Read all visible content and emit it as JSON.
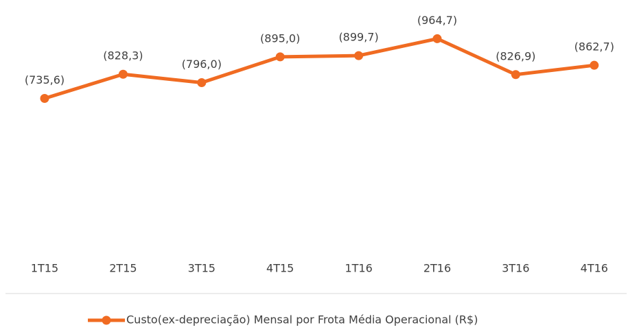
{
  "chart_data": {
    "type": "line",
    "categories": [
      "1T15",
      "2T15",
      "3T15",
      "4T15",
      "1T16",
      "2T16",
      "3T16",
      "4T16"
    ],
    "series": [
      {
        "name": "Custo(ex-depreciação) Mensal por Frota Média Operacional (R$)",
        "color": "#f06b22",
        "values": [
          735.6,
          828.3,
          796.0,
          895.0,
          899.7,
          964.7,
          826.9,
          862.7
        ],
        "value_labels": [
          "(735,6)",
          "(828,3)",
          "(796,0)",
          "(895,0)",
          "(899,7)",
          "(964,7)",
          "(826,9)",
          "(862,7)"
        ]
      }
    ],
    "ylim": [
      200,
      1000
    ],
    "grid": false,
    "legend": "bottom"
  }
}
